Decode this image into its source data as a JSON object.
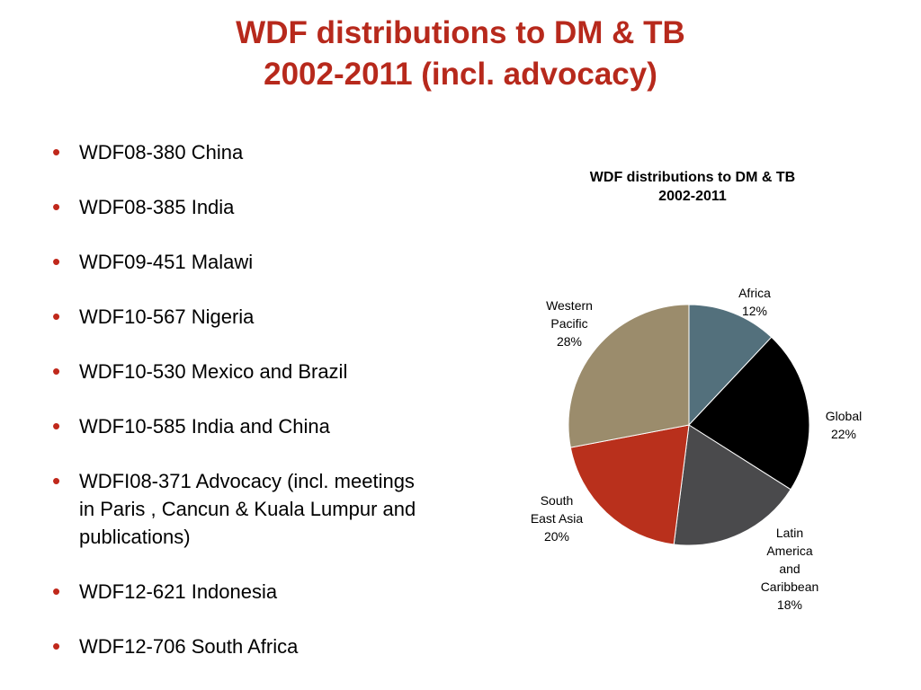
{
  "slide": {
    "title_line1": "WDF distributions to DM & TB",
    "title_line2": "2002-2011 (incl. advocacy)",
    "title_color": "#b7291c",
    "bullet_color": "#c0281b",
    "bullet_glyph": "•"
  },
  "bullets": [
    {
      "lines": [
        "WDF08-380 China"
      ]
    },
    {
      "lines": [
        "WDF08-385 India"
      ]
    },
    {
      "lines": [
        "WDF09-451 Malawi"
      ]
    },
    {
      "lines": [
        "WDF10-567 Nigeria"
      ]
    },
    {
      "lines": [
        "WDF10-530 Mexico and Brazil"
      ]
    },
    {
      "lines": [
        "WDF10-585 India and China"
      ]
    },
    {
      "lines": [
        "WDFI08-371 Advocacy (incl. meetings",
        "in Paris , Cancun & Kuala Lumpur and",
        "publications)"
      ]
    },
    {
      "lines": [
        "WDF12-621 Indonesia"
      ]
    },
    {
      "lines": [
        "WDF12-706 South Africa"
      ]
    }
  ],
  "chart_data": {
    "type": "pie",
    "title_lines": [
      "WDF distributions to DM & TB",
      "2002-2011"
    ],
    "slices": [
      {
        "label_lines": [
          "Africa"
        ],
        "percent_label": "12%",
        "value": 12,
        "color": "#53707c"
      },
      {
        "label_lines": [
          "Global"
        ],
        "percent_label": "22%",
        "value": 22,
        "color": "#000000"
      },
      {
        "label_lines": [
          "Latin",
          "America",
          "and",
          "Caribbean"
        ],
        "percent_label": "18%",
        "value": 18,
        "color": "#4a4a4c"
      },
      {
        "label_lines": [
          "South",
          "East Asia"
        ],
        "percent_label": "20%",
        "value": 20,
        "color": "#b9301c"
      },
      {
        "label_lines": [
          "Western",
          "Pacific"
        ],
        "percent_label": "28%",
        "value": 28,
        "color": "#9b8c6c"
      }
    ],
    "start": "12 o'clock",
    "direction": "clockwise",
    "legend": "none",
    "data_labels": "outside"
  }
}
